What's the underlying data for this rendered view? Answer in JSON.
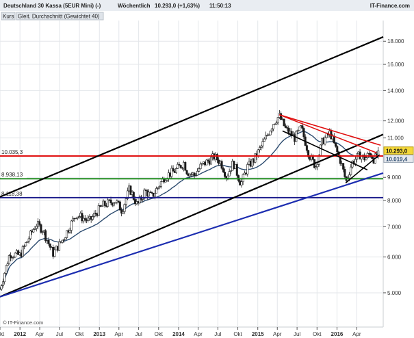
{
  "header": {
    "instrument": "Deutschland 30 Kassa (5EUR Mini) (-)",
    "interval": "Wöchentlich",
    "quote": "10.293,0 (+1,63%)",
    "time": "11:50:13",
    "brand": "IT-Finance.com"
  },
  "legend": {
    "price_label": "Kurs",
    "ma_label": "Gleit. Durchschnitt (Gewichtet 40)"
  },
  "copyright": "© IT-Finance.com",
  "colors": {
    "candle_up": "#1a1a1a",
    "candle_down": "#1a1a1a",
    "ma": "#2b4a6e",
    "support_green": "#1e8a1e",
    "resistance_red": "#e01010",
    "level_navy": "#1c1c8c",
    "trend_black": "#000000",
    "trend_blue": "#1c2db0",
    "price_tag": "#f4d83a",
    "ma_tag": "#e6e9ee",
    "header_bg": "#e9edf2"
  },
  "chart_data": {
    "type": "candlestick",
    "title": "Deutschland 30 Kassa (5EUR Mini) (-)",
    "interval": "Wöchentlich",
    "y_scale": "log",
    "ylim": [
      4200,
      20000
    ],
    "xlim": [
      "2011-10-01",
      "2016-08-01"
    ],
    "y_ticks": [
      {
        "value": 5000,
        "label": "5.000"
      },
      {
        "value": 6000,
        "label": "6.000"
      },
      {
        "value": 7000,
        "label": "7.000"
      },
      {
        "value": 8000,
        "label": "8.000"
      },
      {
        "value": 9000,
        "label": "9.000"
      },
      {
        "value": 11000,
        "label": "11.000"
      },
      {
        "value": 12000,
        "label": "12.000"
      },
      {
        "value": 14000,
        "label": "14.000"
      },
      {
        "value": 16000,
        "label": "16.000"
      },
      {
        "value": 18000,
        "label": "18.000"
      }
    ],
    "x_ticks": [
      {
        "date": "2011-10-01",
        "label": "Okt",
        "year": false
      },
      {
        "date": "2012-01-01",
        "label": "2012",
        "year": true
      },
      {
        "date": "2012-04-01",
        "label": "Apr",
        "year": false
      },
      {
        "date": "2012-07-01",
        "label": "Jul",
        "year": false
      },
      {
        "date": "2012-10-01",
        "label": "Okt",
        "year": false
      },
      {
        "date": "2013-01-01",
        "label": "2013",
        "year": true
      },
      {
        "date": "2013-04-01",
        "label": "Apr",
        "year": false
      },
      {
        "date": "2013-07-01",
        "label": "Jul",
        "year": false
      },
      {
        "date": "2013-10-01",
        "label": "Okt",
        "year": false
      },
      {
        "date": "2014-01-01",
        "label": "2014",
        "year": true
      },
      {
        "date": "2014-04-01",
        "label": "Apr",
        "year": false
      },
      {
        "date": "2014-07-01",
        "label": "Jul",
        "year": false
      },
      {
        "date": "2014-10-01",
        "label": "Okt",
        "year": false
      },
      {
        "date": "2015-01-01",
        "label": "2015",
        "year": true
      },
      {
        "date": "2015-04-01",
        "label": "Apr",
        "year": false
      },
      {
        "date": "2015-07-01",
        "label": "Jul",
        "year": false
      },
      {
        "date": "2015-10-01",
        "label": "Okt",
        "year": false
      },
      {
        "date": "2016-01-01",
        "label": "2016",
        "year": true
      },
      {
        "date": "2016-04-01",
        "label": "Apr",
        "year": false
      }
    ],
    "last_price": {
      "value": 10293.0,
      "label": "10.293,0"
    },
    "ma_last": {
      "value": 10019.4,
      "label": "10.019,4"
    },
    "horizontal_levels": [
      {
        "value": 10035.3,
        "label": "10.035,3",
        "color": "#e01010"
      },
      {
        "value": 8938.13,
        "label": "8.938,13",
        "color": "#1e8a1e"
      },
      {
        "value": 8118.38,
        "label": "8.118,38",
        "color": "#1c1c8c"
      }
    ],
    "trendlines": [
      {
        "name": "channel-upper",
        "color": "#000000",
        "points": [
          [
            "2011-10-01",
            8150
          ],
          [
            "2016-08-01",
            18400
          ]
        ]
      },
      {
        "name": "channel-lower",
        "color": "#000000",
        "points": [
          [
            "2011-10-01",
            4900
          ],
          [
            "2016-08-01",
            11200
          ]
        ]
      },
      {
        "name": "long-support",
        "color": "#1c2db0",
        "points": [
          [
            "2011-10-01",
            4900
          ],
          [
            "2016-08-01",
            9200
          ]
        ]
      },
      {
        "name": "down-resist-1",
        "color": "#e01010",
        "points": [
          [
            "2015-04-10",
            12380
          ],
          [
            "2016-07-20",
            10600
          ]
        ]
      },
      {
        "name": "down-resist-2",
        "color": "#e01010",
        "points": [
          [
            "2015-04-10",
            12380
          ],
          [
            "2016-07-01",
            10200
          ]
        ]
      },
      {
        "name": "down-mid",
        "color": "#000000",
        "points": [
          [
            "2015-04-25",
            11400
          ],
          [
            "2016-05-20",
            9350
          ]
        ]
      },
      {
        "name": "rebound",
        "color": "#000000",
        "points": [
          [
            "2016-02-10",
            8750
          ],
          [
            "2016-07-15",
            10100
          ]
        ]
      }
    ],
    "anchors": [
      [
        "2011-10-01",
        5100
      ],
      [
        "2011-11-15",
        6100
      ],
      [
        "2012-01-01",
        6050
      ],
      [
        "2012-03-15",
        7100
      ],
      [
        "2012-04-15",
        6900
      ],
      [
        "2012-06-01",
        6100
      ],
      [
        "2012-07-15",
        6550
      ],
      [
        "2012-09-15",
        7450
      ],
      [
        "2012-11-15",
        7200
      ],
      [
        "2013-01-15",
        7800
      ],
      [
        "2013-03-15",
        8000
      ],
      [
        "2013-04-15",
        7600
      ],
      [
        "2013-05-20",
        8500
      ],
      [
        "2013-06-25",
        7800
      ],
      [
        "2013-07-30",
        8400
      ],
      [
        "2013-08-30",
        8150
      ],
      [
        "2013-10-30",
        9050
      ],
      [
        "2013-12-15",
        9300
      ],
      [
        "2014-01-25",
        9700
      ],
      [
        "2014-02-10",
        9250
      ],
      [
        "2014-03-15",
        9100
      ],
      [
        "2014-04-15",
        9550
      ],
      [
        "2014-06-15",
        10000
      ],
      [
        "2014-07-15",
        9700
      ],
      [
        "2014-08-10",
        9050
      ],
      [
        "2014-09-10",
        9700
      ],
      [
        "2014-10-15",
        8700
      ],
      [
        "2014-11-15",
        9500
      ],
      [
        "2014-12-15",
        9850
      ],
      [
        "2015-01-20",
        10600
      ],
      [
        "2015-03-15",
        11900
      ],
      [
        "2015-04-10",
        12300
      ],
      [
        "2015-05-10",
        11500
      ],
      [
        "2015-06-20",
        11000
      ],
      [
        "2015-07-20",
        11600
      ],
      [
        "2015-08-25",
        10100
      ],
      [
        "2015-09-25",
        9500
      ],
      [
        "2015-10-25",
        10800
      ],
      [
        "2015-12-01",
        11300
      ],
      [
        "2015-12-20",
        10600
      ],
      [
        "2016-01-20",
        9700
      ],
      [
        "2016-02-12",
        8800
      ],
      [
        "2016-03-10",
        9700
      ],
      [
        "2016-04-15",
        10100
      ],
      [
        "2016-05-10",
        9900
      ],
      [
        "2016-06-01",
        10200
      ],
      [
        "2016-06-20",
        9850
      ],
      [
        "2016-07-15",
        10293
      ]
    ]
  }
}
